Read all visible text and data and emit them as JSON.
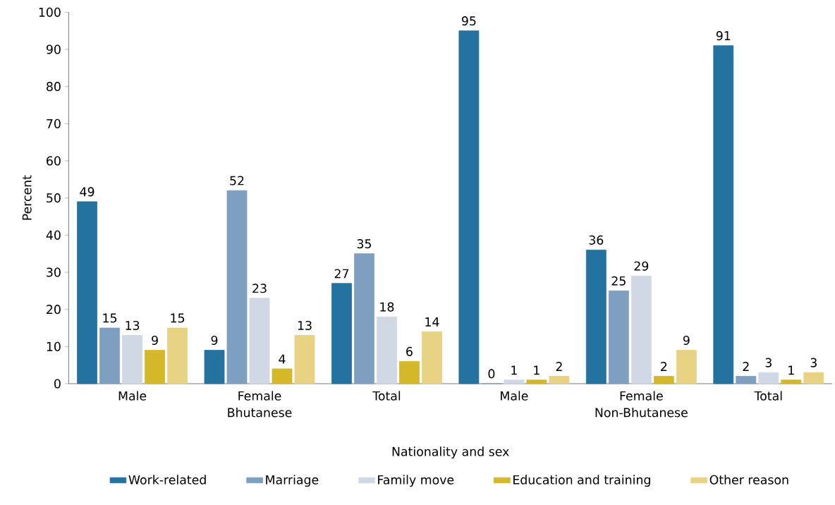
{
  "chart_data": {
    "type": "bar",
    "xlabel": "Nationality and sex",
    "ylabel": "Percent",
    "categories": [
      "Male",
      "Female",
      "Total",
      "Male",
      "Female",
      "Total"
    ],
    "annotations": [
      "Bhutanese",
      "Non-Bhutanese"
    ],
    "series": [
      {
        "name": "Work-related",
        "color": "#2472a0",
        "values": [
          49,
          9,
          27,
          95,
          36,
          91
        ]
      },
      {
        "name": "Marriage",
        "color": "#7f9fc1",
        "values": [
          15,
          52,
          35,
          0,
          25,
          2
        ]
      },
      {
        "name": "Family move",
        "color": "#d0d8e6",
        "values": [
          13,
          23,
          18,
          1,
          29,
          3
        ]
      },
      {
        "name": "Education and training",
        "color": "#d4b82a",
        "values": [
          9,
          4,
          6,
          1,
          2,
          1
        ]
      },
      {
        "name": "Other reason",
        "color": "#e8d283",
        "values": [
          15,
          13,
          14,
          2,
          9,
          3
        ]
      }
    ],
    "ylim": [
      0,
      100
    ],
    "yticks": [
      0,
      10,
      20,
      30,
      40,
      50,
      60,
      70,
      80,
      90,
      100
    ],
    "data_labels": true,
    "legend": "bottom",
    "grid": false
  }
}
